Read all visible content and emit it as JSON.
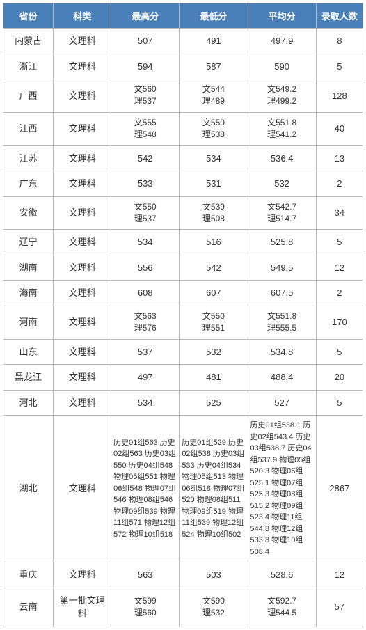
{
  "columns": [
    "省份",
    "科类",
    "最高分",
    "最低分",
    "平均分",
    "录取人数"
  ],
  "col_widths": [
    "14%",
    "16%",
    "19%",
    "19%",
    "19%",
    "13%"
  ],
  "header_bg": "#4980b9",
  "header_fg": "#ffffff",
  "border_color": "#b8b8b8",
  "text_color": "#333333",
  "rows": [
    {
      "province": "内蒙古",
      "category": "文理科",
      "max": "507",
      "min": "491",
      "avg": "497.9",
      "count": "8"
    },
    {
      "province": "浙江",
      "category": "文理科",
      "max": "594",
      "min": "587",
      "avg": "590",
      "count": "5"
    },
    {
      "province": "广西",
      "category": "文理科",
      "max": "文560\n理537",
      "min": "文544\n理489",
      "avg": "文549.2\n理499.2",
      "count": "128",
      "multi": true
    },
    {
      "province": "江西",
      "category": "文理科",
      "max": "文555\n理548",
      "min": "文550\n理538",
      "avg": "文551.8\n理541.2",
      "count": "40",
      "multi": true
    },
    {
      "province": "江苏",
      "category": "文理科",
      "max": "542",
      "min": "534",
      "avg": "536.4",
      "count": "13"
    },
    {
      "province": "广东",
      "category": "文理科",
      "max": "533",
      "min": "531",
      "avg": "532",
      "count": "2"
    },
    {
      "province": "安徽",
      "category": "文理科",
      "max": "文550\n理537",
      "min": "文539\n理508",
      "avg": "文542.7\n理514.7",
      "count": "34",
      "multi": true
    },
    {
      "province": "辽宁",
      "category": "文理科",
      "max": "534",
      "min": "516",
      "avg": "525.8",
      "count": "5"
    },
    {
      "province": "湖南",
      "category": "文理科",
      "max": "556",
      "min": "542",
      "avg": "549.5",
      "count": "12"
    },
    {
      "province": "海南",
      "category": "文理科",
      "max": "608",
      "min": "607",
      "avg": "607.5",
      "count": "2"
    },
    {
      "province": "河南",
      "category": "文理科",
      "max": "文563\n理576",
      "min": "文550\n理551",
      "avg": "文551.8\n理555.5",
      "count": "170",
      "multi": true
    },
    {
      "province": "山东",
      "category": "文理科",
      "max": "537",
      "min": "532",
      "avg": "534.8",
      "count": "5"
    },
    {
      "province": "黑龙江",
      "category": "文理科",
      "max": "497",
      "min": "481",
      "avg": "488.4",
      "count": "20"
    },
    {
      "province": "河北",
      "category": "文理科",
      "max": "534",
      "min": "525",
      "avg": "527",
      "count": "5"
    },
    {
      "province": "湖北",
      "category": "文理科",
      "max": "历史01组563\n历史02组563\n历史03组550\n历史04组548\n物理05组551\n物理06组548\n物理07组546\n物理08组546\n物理09组539\n物理11组571\n物理12组572\n物理10组518",
      "min": "历史01组529\n历史02组538\n历史03组533\n历史04组534\n物理05组513\n物理06组518\n物理07组520\n物理08组511\n物理09组519\n物理11组539\n物理12组524\n物理10组502",
      "avg": "历史01组538.1\n历史02组543.4\n历史03组538.7\n历史04组537.9\n物理05组520.3\n物理06组525.1\n物理07组525.3\n物理08组515.2\n物理09组523.4\n物理11组544.8\n物理12组533.8\n物理10组508.4",
      "count": "2867",
      "big": true
    },
    {
      "province": "重庆",
      "category": "文理科",
      "max": "563",
      "min": "503",
      "avg": "528.6",
      "count": "12"
    },
    {
      "province": "云南",
      "category": "第一批文理科",
      "max": "文599\n理560",
      "min": "文590\n理532",
      "avg": "文592.7\n理544.5",
      "count": "57",
      "multi": true
    }
  ]
}
